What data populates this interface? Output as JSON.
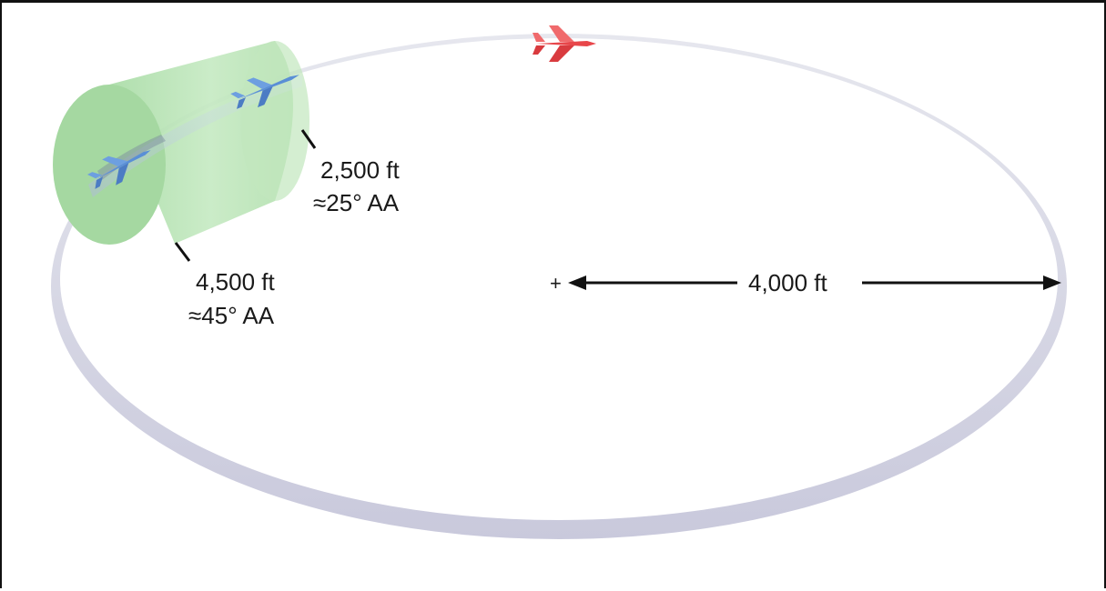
{
  "diagram": {
    "cone_near": {
      "distance": "2,500 ft",
      "aspect_angle": "≈25° AA"
    },
    "cone_far": {
      "distance": "4,500 ft",
      "aspect_angle": "≈45° AA"
    },
    "radius": {
      "center_mark": "+",
      "label": "4,000 ft"
    }
  },
  "colors": {
    "cone_fill": "#b6e4b2",
    "orbit_ring": "#dcdde8",
    "bandit_jet": "#e8464a",
    "fighter_jet": "#5a8fd6",
    "arrow": "#111111"
  },
  "icons": [
    "red-bandit-jet-icon",
    "blue-fighter-jet-icon",
    "blue-fighter-jet-icon"
  ]
}
